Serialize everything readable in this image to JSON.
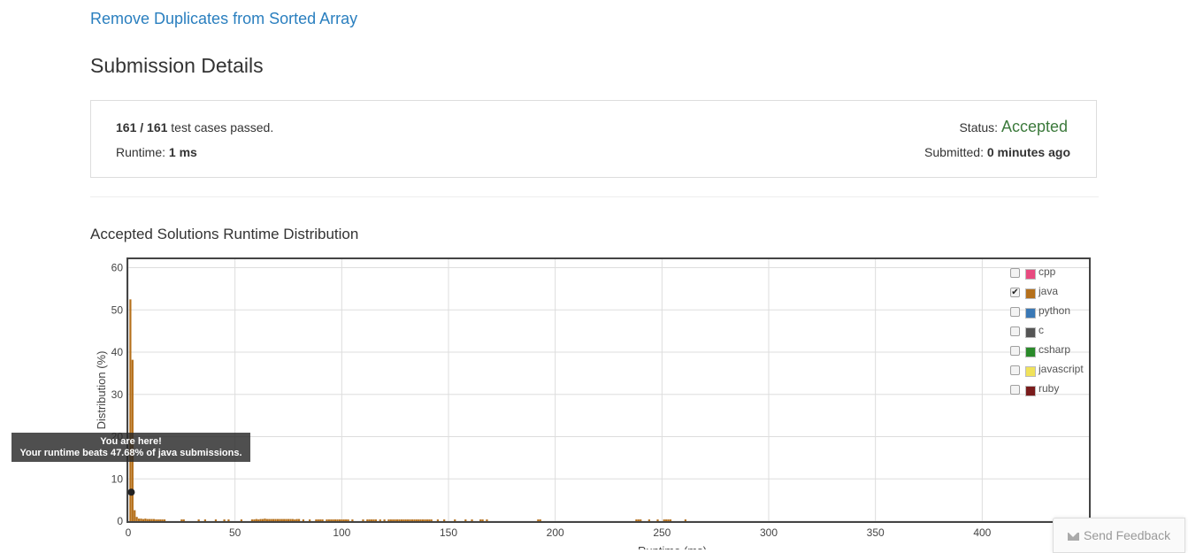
{
  "problem": {
    "title": "Remove Duplicates from Sorted Array"
  },
  "page": {
    "title": "Submission Details"
  },
  "details": {
    "passed": "161",
    "separator": " / ",
    "total": "161",
    "passed_suffix": " test cases passed.",
    "runtime_label": "Runtime: ",
    "runtime_value": "1 ms",
    "status_label": "Status: ",
    "status_value": "Accepted",
    "submitted_label": "Submitted: ",
    "submitted_value": "0 minutes ago"
  },
  "distribution": {
    "title": "Accepted Solutions Runtime Distribution"
  },
  "tooltip": {
    "line1": "You are here!",
    "line2": "Your runtime beats 47.68% of java submissions."
  },
  "legend": [
    {
      "label": "cpp",
      "color": "#e84a7f",
      "checked": false
    },
    {
      "label": "java",
      "color": "#b5701b",
      "checked": true
    },
    {
      "label": "python",
      "color": "#3a78b5",
      "checked": false
    },
    {
      "label": "c",
      "color": "#555555",
      "checked": false
    },
    {
      "label": "csharp",
      "color": "#2a8a2a",
      "checked": false
    },
    {
      "label": "javascript",
      "color": "#f0e25a",
      "checked": false
    },
    {
      "label": "ruby",
      "color": "#7a1c1c",
      "checked": false
    }
  ],
  "feedback": {
    "label": "Send Feedback"
  },
  "chart_data": {
    "type": "bar",
    "xlabel": "Runtime (ms)",
    "ylabel": "Distribution (%)",
    "xlim": [
      0,
      450
    ],
    "ylim": [
      0,
      62
    ],
    "x_ticks": [
      0,
      50,
      100,
      150,
      200,
      250,
      300,
      350,
      400
    ],
    "y_ticks": [
      0,
      10,
      20,
      30,
      40,
      50,
      60
    ],
    "grid": true,
    "legend_position": "top-right",
    "series": [
      {
        "name": "java",
        "color": "#b5701b",
        "x": [
          1,
          2,
          3,
          4,
          5,
          6,
          7,
          8,
          9,
          10,
          11,
          12,
          13,
          14,
          15,
          16,
          17,
          25,
          26,
          33,
          36,
          41,
          45,
          47,
          53,
          58,
          59,
          60,
          61,
          62,
          63,
          64,
          65,
          66,
          67,
          68,
          69,
          70,
          71,
          72,
          73,
          74,
          75,
          76,
          77,
          78,
          79,
          80,
          82,
          85,
          88,
          89,
          90,
          91,
          93,
          94,
          95,
          96,
          97,
          98,
          99,
          100,
          101,
          102,
          103,
          105,
          110,
          112,
          113,
          114,
          115,
          116,
          118,
          120,
          122,
          123,
          124,
          125,
          126,
          127,
          128,
          129,
          130,
          131,
          132,
          133,
          134,
          135,
          136,
          137,
          138,
          139,
          140,
          141,
          142,
          145,
          148,
          153,
          158,
          161,
          165,
          166,
          168,
          192,
          193,
          238,
          239,
          240,
          244,
          248,
          251,
          252,
          253,
          254,
          261
        ],
        "y": [
          52.5,
          38.2,
          2.6,
          1.0,
          0.6,
          0.6,
          0.5,
          0.6,
          0.5,
          0.5,
          0.5,
          0.5,
          0.4,
          0.4,
          0.4,
          0.4,
          0.4,
          0.4,
          0.4,
          0.4,
          0.4,
          0.4,
          0.4,
          0.4,
          0.4,
          0.4,
          0.4,
          0.5,
          0.4,
          0.5,
          0.5,
          0.6,
          0.5,
          0.5,
          0.5,
          0.5,
          0.5,
          0.5,
          0.5,
          0.5,
          0.5,
          0.5,
          0.5,
          0.5,
          0.5,
          0.4,
          0.5,
          0.5,
          0.4,
          0.4,
          0.4,
          0.4,
          0.4,
          0.4,
          0.4,
          0.4,
          0.4,
          0.4,
          0.4,
          0.4,
          0.4,
          0.4,
          0.4,
          0.4,
          0.4,
          0.4,
          0.4,
          0.4,
          0.4,
          0.4,
          0.4,
          0.4,
          0.4,
          0.4,
          0.4,
          0.4,
          0.4,
          0.4,
          0.4,
          0.4,
          0.4,
          0.4,
          0.4,
          0.4,
          0.4,
          0.4,
          0.4,
          0.4,
          0.4,
          0.4,
          0.4,
          0.4,
          0.4,
          0.4,
          0.4,
          0.4,
          0.4,
          0.4,
          0.4,
          0.4,
          0.4,
          0.4,
          0.4,
          0.4,
          0.4,
          0.4,
          0.4,
          0.4,
          0.4,
          0.4,
          0.4,
          0.4,
          0.4,
          0.4,
          0.4
        ]
      }
    ],
    "marker": {
      "x": 1,
      "y": 10
    }
  }
}
